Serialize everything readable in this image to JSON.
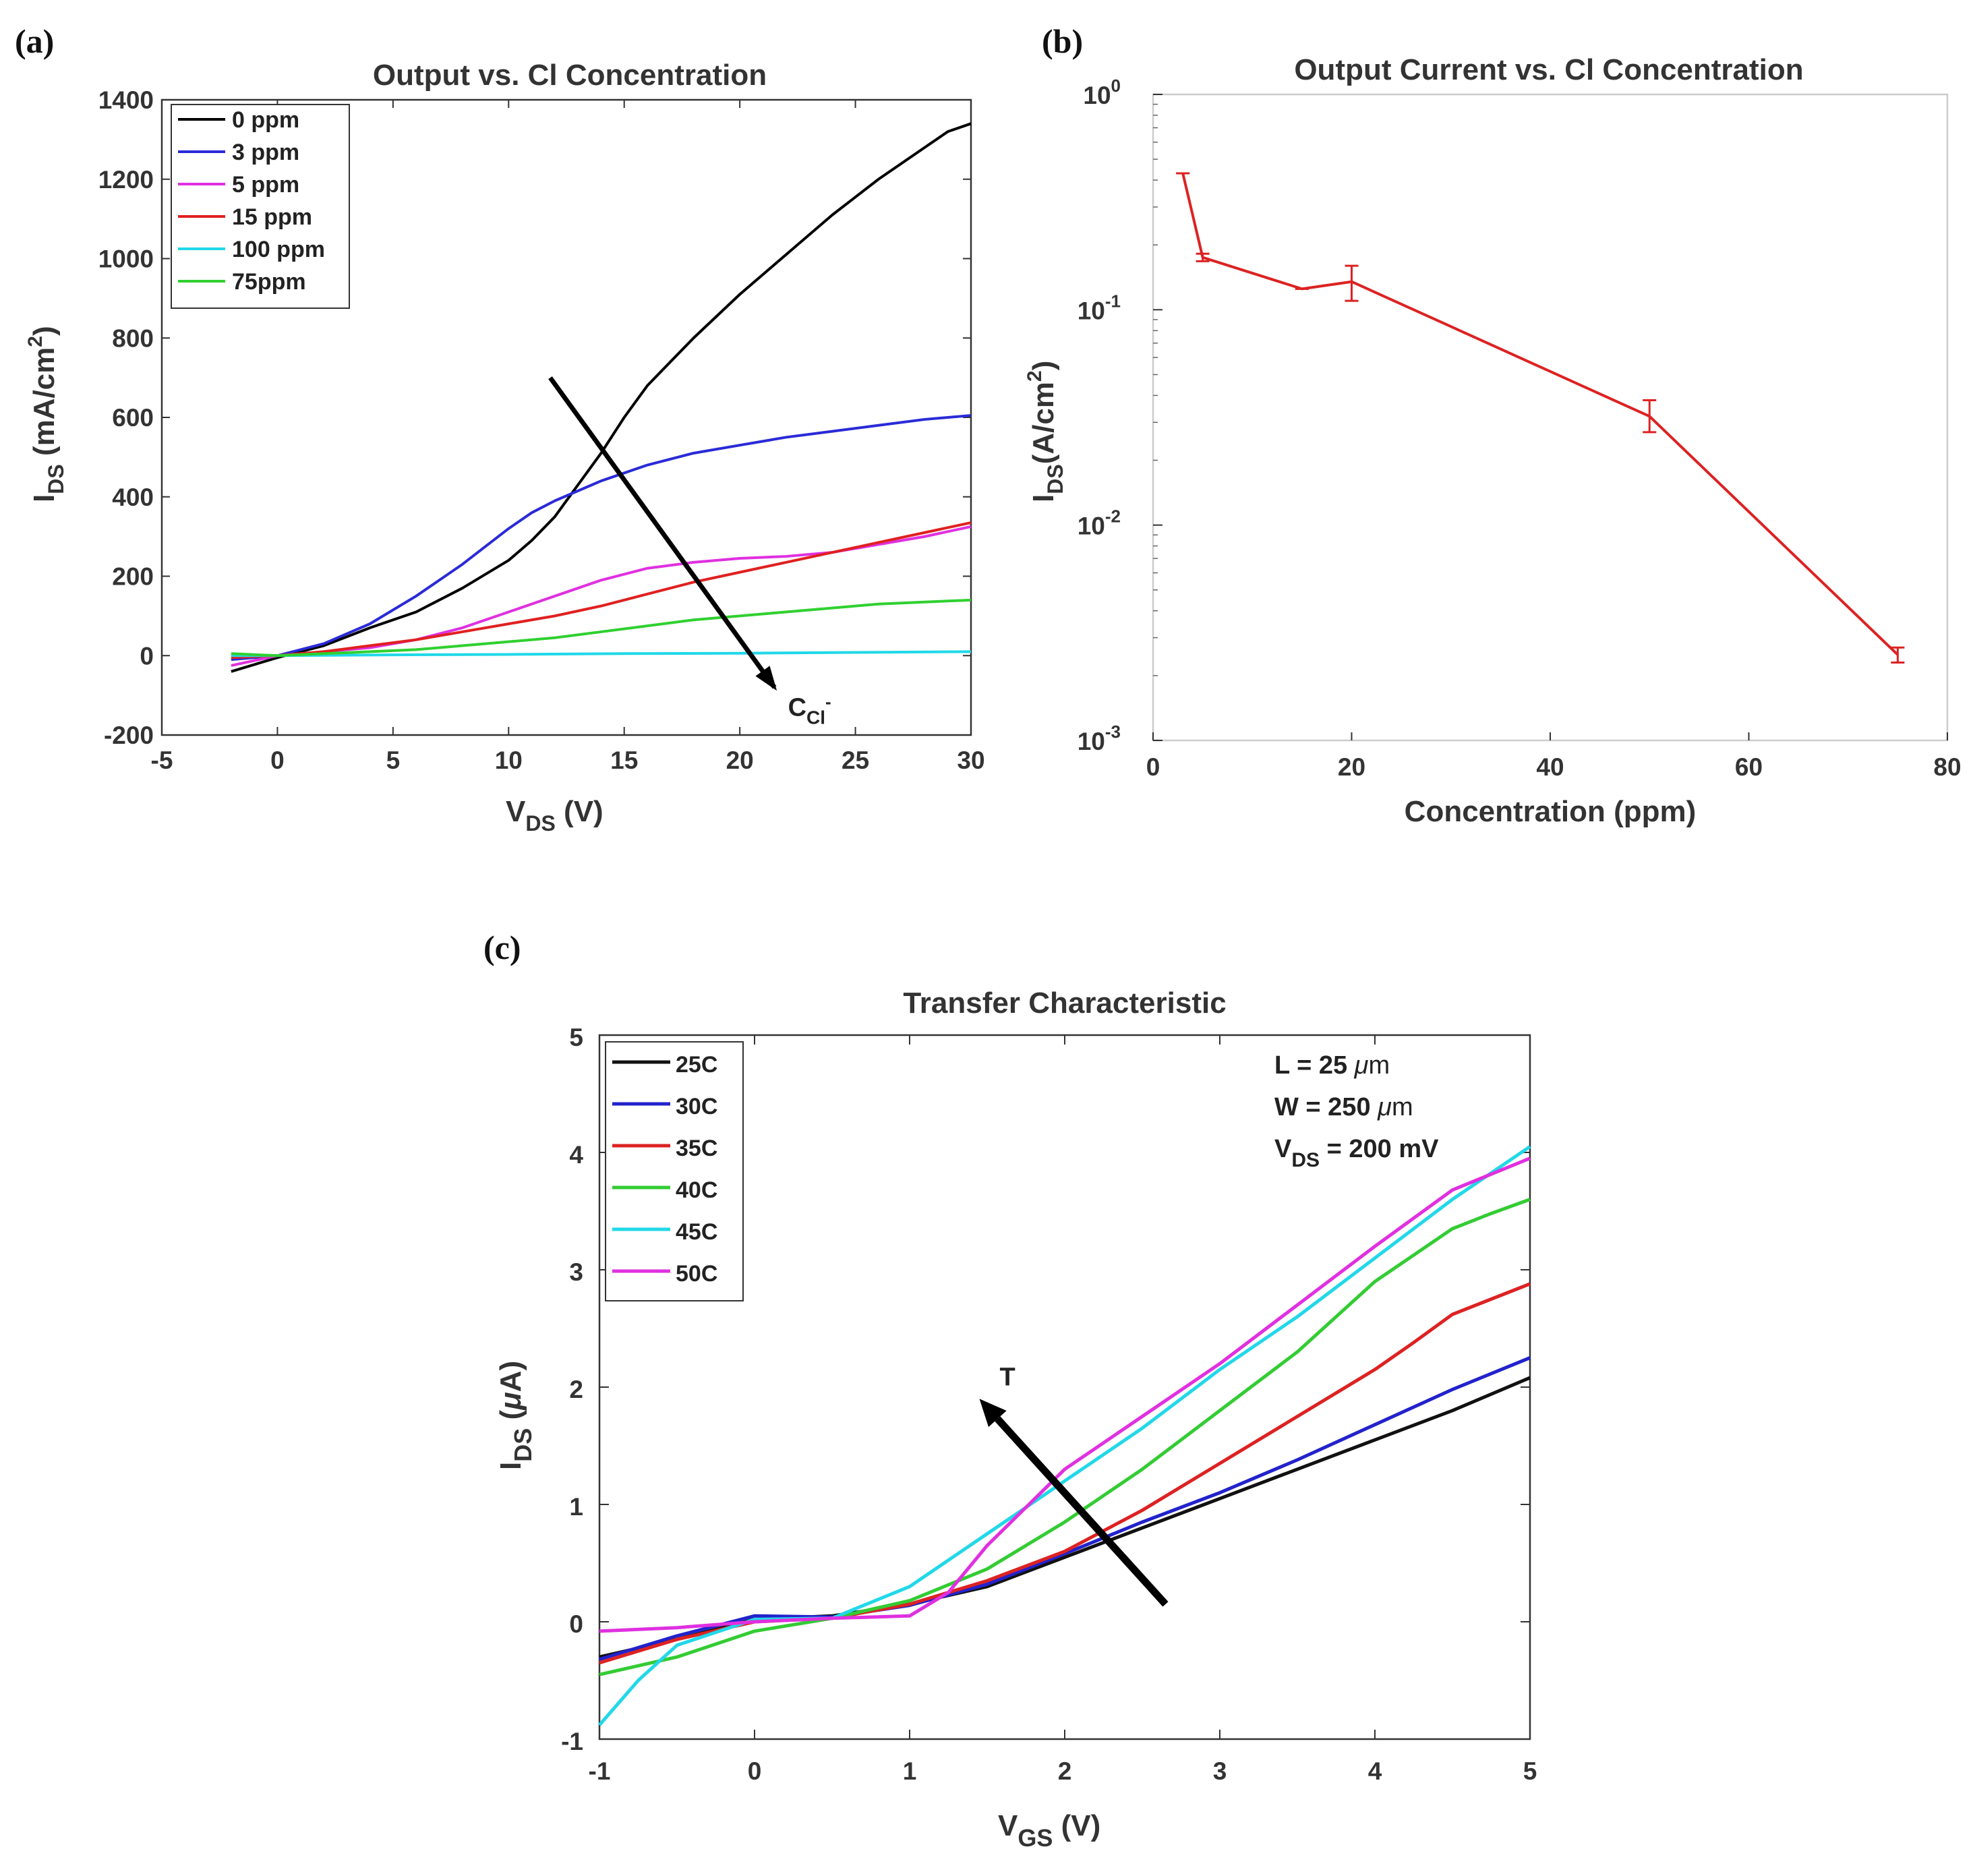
{
  "chart_data": [
    {
      "panel": "(a)",
      "type": "line",
      "title": "Output vs. Cl Concentration",
      "xlabel": "V",
      "xlabel_sub": "DS",
      "xlabel_unit": " (V)",
      "ylabel": "I",
      "ylabel_sub": "DS",
      "ylabel_unit": " (mA/cm",
      "ylabel_sup": "2",
      "ylabel_close": ")",
      "xlim": [
        -5,
        30
      ],
      "ylim": [
        -200,
        1400
      ],
      "xticks": [
        -5,
        0,
        5,
        10,
        15,
        20,
        25,
        30
      ],
      "yticks": [
        -200,
        0,
        200,
        400,
        600,
        800,
        1000,
        1200,
        1400
      ],
      "legend_position": "top-left",
      "annotation": {
        "text": "C",
        "sub": "Cl",
        "sup": "-",
        "arrow_from": [
          11.8,
          700
        ],
        "arrow_to": [
          21.5,
          -80
        ]
      },
      "series": [
        {
          "name": "0 ppm",
          "color": "#000000",
          "x": [
            -2,
            0,
            2,
            4,
            6,
            8,
            10,
            11,
            12,
            13,
            14,
            15,
            16,
            18,
            20,
            22,
            24,
            26,
            28,
            29,
            30
          ],
          "y": [
            -40,
            -5,
            25,
            70,
            110,
            170,
            240,
            290,
            350,
            430,
            510,
            600,
            680,
            800,
            910,
            1010,
            1110,
            1200,
            1280,
            1320,
            1340
          ]
        },
        {
          "name": "3 ppm",
          "color": "#2a2ad8",
          "x": [
            -2,
            0,
            2,
            4,
            6,
            8,
            10,
            11,
            12,
            14,
            16,
            18,
            20,
            22,
            24,
            26,
            28,
            30
          ],
          "y": [
            -10,
            0,
            30,
            80,
            150,
            230,
            320,
            360,
            390,
            440,
            480,
            510,
            530,
            550,
            565,
            580,
            595,
            605
          ]
        },
        {
          "name": "5 ppm",
          "color": "#e030e0",
          "x": [
            -2,
            0,
            2,
            4,
            6,
            8,
            10,
            12,
            14,
            16,
            18,
            20,
            22,
            24,
            26,
            28,
            30
          ],
          "y": [
            -25,
            0,
            10,
            20,
            40,
            70,
            110,
            150,
            190,
            220,
            235,
            245,
            250,
            260,
            280,
            300,
            325
          ]
        },
        {
          "name": "15 ppm",
          "color": "#e02020",
          "x": [
            -2,
            0,
            2,
            4,
            6,
            8,
            10,
            12,
            14,
            16,
            18,
            20,
            22,
            24,
            26,
            28,
            30
          ],
          "y": [
            -5,
            0,
            10,
            25,
            40,
            60,
            80,
            100,
            125,
            155,
            185,
            210,
            235,
            260,
            285,
            310,
            335
          ]
        },
        {
          "name": "100 ppm",
          "color": "#20d8e8",
          "x": [
            -2,
            0,
            5,
            10,
            15,
            20,
            25,
            30
          ],
          "y": [
            0,
            0,
            2,
            3,
            5,
            6,
            8,
            10
          ]
        },
        {
          "name": "75ppm",
          "color": "#30d030",
          "x": [
            -2,
            0,
            2,
            4,
            6,
            8,
            10,
            12,
            14,
            16,
            18,
            20,
            22,
            24,
            26,
            28,
            30
          ],
          "y": [
            5,
            0,
            5,
            10,
            15,
            25,
            35,
            45,
            60,
            75,
            90,
            100,
            110,
            120,
            130,
            135,
            140
          ]
        }
      ]
    },
    {
      "panel": "(b)",
      "type": "line",
      "title": "Output Current vs. Cl Concentration",
      "xlabel": "Concentration (ppm)",
      "ylabel": "I",
      "ylabel_sub": "DS",
      "ylabel_unit": "(A/cm",
      "ylabel_sup": "2",
      "ylabel_close": ")",
      "yscale": "log",
      "xlim": [
        0,
        80
      ],
      "ylim": [
        0.001,
        1
      ],
      "xticks": [
        0,
        20,
        40,
        60,
        80
      ],
      "yticks": [
        0.001,
        0.01,
        0.1,
        1
      ],
      "ytick_labels": [
        {
          "base": "10",
          "exp": "-3"
        },
        {
          "base": "10",
          "exp": "-2"
        },
        {
          "base": "10",
          "exp": "-1"
        },
        {
          "base": "10",
          "exp": "0"
        }
      ],
      "series": [
        {
          "name": "",
          "color": "#dd2222",
          "x": [
            3,
            5,
            15,
            20,
            50,
            75
          ],
          "y": [
            0.43,
            0.175,
            0.125,
            0.135,
            0.032,
            0.0025
          ],
          "err_low": [
            0.43,
            0.168,
            0.125,
            0.11,
            0.027,
            0.0023
          ],
          "err_high": [
            0.43,
            0.182,
            0.125,
            0.16,
            0.038,
            0.0027
          ]
        }
      ]
    },
    {
      "panel": "(c)",
      "type": "line",
      "title": "Transfer Characteristic",
      "xlabel": "V",
      "xlabel_sub": "GS",
      "xlabel_unit": " (V)",
      "ylabel": "I",
      "ylabel_sub": "DS",
      "ylabel_unit": " (",
      "ylabel_mu": "μ",
      "ylabel_close": "A)",
      "xlim": [
        -1,
        5
      ],
      "ylim": [
        -1,
        5
      ],
      "xticks": [
        -1,
        0,
        1,
        2,
        3,
        4,
        5
      ],
      "yticks": [
        -1,
        0,
        1,
        2,
        3,
        4,
        5
      ],
      "legend_position": "top-left",
      "device_params": [
        {
          "text": "L  =  25  ",
          "mu": "μ",
          "unit": "m"
        },
        {
          "text": "W  =  250 ",
          "mu": "μ",
          "unit": "m"
        },
        {
          "text": "V",
          "sub": "DS",
          "rest": " = 200 mV"
        }
      ],
      "annotation": {
        "text": "T",
        "arrow_from": [
          2.65,
          0.15
        ],
        "arrow_to": [
          1.45,
          1.9
        ]
      },
      "series": [
        {
          "name": "25C",
          "color": "#111111",
          "x": [
            -1,
            -0.5,
            0,
            0.5,
            1,
            1.5,
            2,
            2.5,
            3,
            3.5,
            4,
            4.5,
            5
          ],
          "y": [
            -0.3,
            -0.15,
            0.02,
            0.05,
            0.15,
            0.3,
            0.55,
            0.8,
            1.05,
            1.3,
            1.55,
            1.8,
            2.08
          ]
        },
        {
          "name": "30C",
          "color": "#2222cc",
          "x": [
            -1,
            -0.5,
            0,
            0.5,
            1,
            1.5,
            2,
            2.5,
            3,
            3.5,
            4,
            4.5,
            5
          ],
          "y": [
            -0.32,
            -0.12,
            0.05,
            0.04,
            0.14,
            0.32,
            0.58,
            0.85,
            1.1,
            1.38,
            1.68,
            1.98,
            2.25
          ]
        },
        {
          "name": "35C",
          "color": "#dd2222",
          "x": [
            -1,
            -0.5,
            0,
            0.5,
            1,
            1.5,
            2,
            2.5,
            3,
            3.5,
            4,
            4.25,
            4.5,
            4.75,
            5
          ],
          "y": [
            -0.35,
            -0.15,
            0.0,
            0.03,
            0.15,
            0.35,
            0.6,
            0.95,
            1.35,
            1.75,
            2.15,
            2.38,
            2.62,
            2.75,
            2.88
          ]
        },
        {
          "name": "40C",
          "color": "#33cc33",
          "x": [
            -1,
            -0.5,
            0,
            0.5,
            1,
            1.5,
            2,
            2.5,
            3,
            3.5,
            4,
            4.5,
            4.75,
            5
          ],
          "y": [
            -0.45,
            -0.3,
            -0.08,
            0.03,
            0.18,
            0.45,
            0.85,
            1.3,
            1.8,
            2.3,
            2.9,
            3.35,
            3.48,
            3.6
          ]
        },
        {
          "name": "45C",
          "color": "#22d8e8",
          "x": [
            -1,
            -0.75,
            -0.5,
            0,
            0.5,
            1,
            1.5,
            2,
            2.5,
            3,
            3.5,
            4,
            4.5,
            5
          ],
          "y": [
            -0.88,
            -0.5,
            -0.2,
            0.02,
            0.03,
            0.3,
            0.75,
            1.2,
            1.65,
            2.15,
            2.6,
            3.1,
            3.6,
            4.05
          ]
        },
        {
          "name": "50C",
          "color": "#e030e0",
          "x": [
            -1,
            -0.5,
            0,
            0.5,
            1,
            1.25,
            1.5,
            2,
            2.5,
            3,
            3.5,
            4,
            4.5,
            5
          ],
          "y": [
            -0.08,
            -0.05,
            0.0,
            0.03,
            0.05,
            0.25,
            0.65,
            1.3,
            1.75,
            2.2,
            2.7,
            3.2,
            3.68,
            3.95
          ]
        }
      ]
    }
  ]
}
